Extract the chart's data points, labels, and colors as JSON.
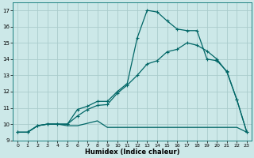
{
  "xlabel": "Humidex (Indice chaleur)",
  "bg_color": "#cce8e8",
  "grid_color": "#aacccc",
  "line_color": "#006666",
  "xlim": [
    -0.5,
    23.5
  ],
  "ylim": [
    9,
    17.5
  ],
  "yticks": [
    9,
    10,
    11,
    12,
    13,
    14,
    15,
    16,
    17
  ],
  "xticks": [
    0,
    1,
    2,
    3,
    4,
    5,
    6,
    7,
    8,
    9,
    10,
    11,
    12,
    13,
    14,
    15,
    16,
    17,
    18,
    19,
    20,
    21,
    22,
    23
  ],
  "peak_x": [
    0,
    1,
    2,
    3,
    4,
    5,
    6,
    7,
    8,
    9,
    10,
    11,
    12,
    13,
    14,
    15,
    16,
    17,
    18,
    19,
    20,
    21,
    22,
    23
  ],
  "peak_y": [
    9.5,
    9.5,
    9.9,
    10.0,
    10.0,
    10.0,
    10.9,
    11.1,
    11.4,
    11.4,
    12.0,
    12.5,
    15.3,
    17.0,
    16.9,
    16.35,
    15.85,
    15.75,
    15.75,
    14.0,
    13.9,
    13.25,
    11.5,
    9.5
  ],
  "diag_x": [
    0,
    1,
    2,
    3,
    4,
    5,
    6,
    7,
    8,
    9,
    10,
    11,
    12,
    13,
    14,
    15,
    16,
    17,
    18,
    19,
    20,
    21,
    22,
    23
  ],
  "diag_y": [
    9.5,
    9.5,
    9.9,
    10.0,
    10.0,
    10.0,
    10.5,
    10.9,
    11.15,
    11.2,
    11.9,
    12.4,
    13.0,
    13.7,
    13.9,
    14.45,
    14.6,
    15.0,
    14.85,
    14.5,
    14.0,
    13.2,
    11.5,
    9.5
  ],
  "flat_x": [
    0,
    1,
    2,
    3,
    4,
    5,
    6,
    7,
    8,
    9,
    10,
    11,
    12,
    13,
    14,
    15,
    16,
    17,
    18,
    19,
    20,
    21,
    22,
    23
  ],
  "flat_y": [
    9.5,
    9.5,
    9.9,
    10.0,
    10.0,
    9.9,
    9.9,
    10.05,
    10.2,
    9.8,
    9.8,
    9.8,
    9.8,
    9.8,
    9.8,
    9.8,
    9.8,
    9.8,
    9.8,
    9.8,
    9.8,
    9.8,
    9.8,
    9.5
  ]
}
